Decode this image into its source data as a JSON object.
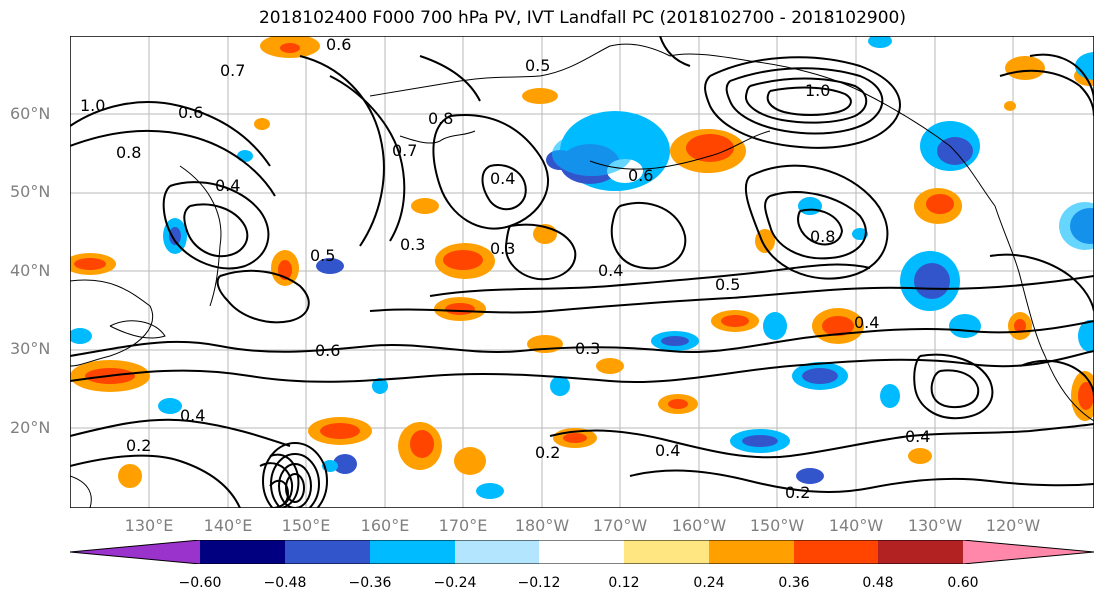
{
  "title": "2018102400 F000 700 hPa PV, IVT Landfall PC (2018102700 - 2018102900)",
  "lat_labels": [
    "60°N",
    "50°N",
    "40°N",
    "30°N",
    "20°N"
  ],
  "lon_labels": [
    "130°E",
    "140°E",
    "150°E",
    "160°E",
    "170°E",
    "180°W",
    "170°W",
    "160°W",
    "150°W",
    "140°W",
    "130°W",
    "120°W"
  ],
  "contour_labels": [
    "0.6",
    "0.7",
    "1.0",
    "0.6",
    "0.8",
    "0.4",
    "0.5",
    "0.3",
    "0.2",
    "0.4",
    "0.6",
    "0.5",
    "0.8",
    "0.7",
    "0.6",
    "0.4",
    "0.3",
    "0.4",
    "0.2",
    "0.4",
    "0.3",
    "0.4",
    "0.2",
    "0.4",
    "0.8",
    "1.0",
    "0.5"
  ],
  "colorbar": {
    "ticks": [
      "−0.60",
      "−0.48",
      "−0.36",
      "−0.24",
      "−0.12",
      "0.12",
      "0.24",
      "0.36",
      "0.48",
      "0.60"
    ],
    "colors": [
      "#9933cc",
      "#000080",
      "#3355cc",
      "#00bbff",
      "#b3e5ff",
      "#ffffff",
      "#ffe680",
      "#ffa000",
      "#ff4500",
      "#b22222",
      "#ff88aa"
    ]
  },
  "colors": {
    "contour": "#000000",
    "land_border": "#000000",
    "grid": "#aaaaaa",
    "axis_label": "#808080"
  }
}
